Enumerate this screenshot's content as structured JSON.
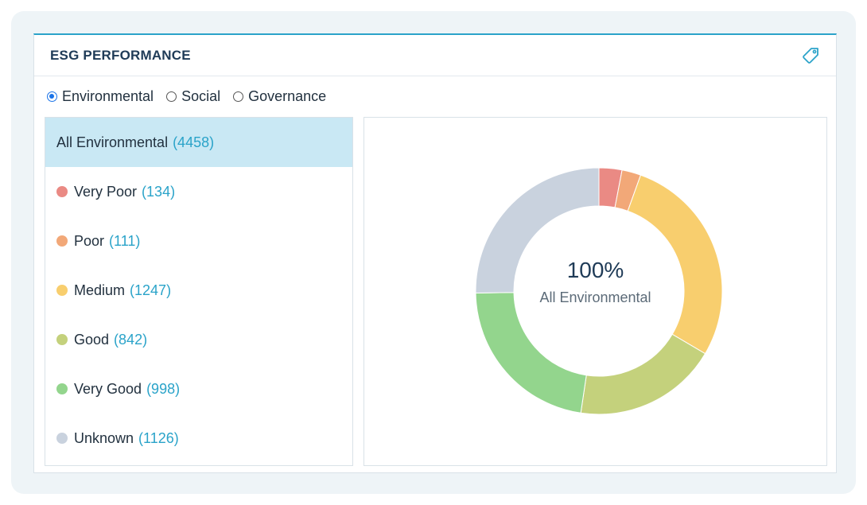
{
  "header": {
    "title": "ESG PERFORMANCE",
    "icon": "tag-icon"
  },
  "radios": [
    {
      "label": "Environmental",
      "selected": true
    },
    {
      "label": "Social",
      "selected": false
    },
    {
      "label": "Governance",
      "selected": false
    }
  ],
  "list": {
    "all": {
      "label": "All Environmental",
      "count": "(4458)"
    },
    "items": [
      {
        "label": "Very Poor",
        "count": "(134)",
        "color": "#ea8a84"
      },
      {
        "label": "Poor",
        "count": "(111)",
        "color": "#f2a878"
      },
      {
        "label": "Medium",
        "count": "(1247)",
        "color": "#f8ce6e"
      },
      {
        "label": "Good",
        "count": "(842)",
        "color": "#c4d17c"
      },
      {
        "label": "Very Good",
        "count": "(998)",
        "color": "#93d58d"
      },
      {
        "label": "Unknown",
        "count": "(1126)",
        "color": "#c9d2de"
      }
    ]
  },
  "chart_data": {
    "type": "pie",
    "donut": true,
    "center_value": "100%",
    "center_label": "All Environmental",
    "categories": [
      "Very Poor",
      "Poor",
      "Medium",
      "Good",
      "Very Good",
      "Unknown"
    ],
    "values": [
      134,
      111,
      1247,
      842,
      998,
      1126
    ],
    "colors": [
      "#ea8a84",
      "#f2a878",
      "#f8ce6e",
      "#c4d17c",
      "#93d58d",
      "#c9d2de"
    ]
  }
}
